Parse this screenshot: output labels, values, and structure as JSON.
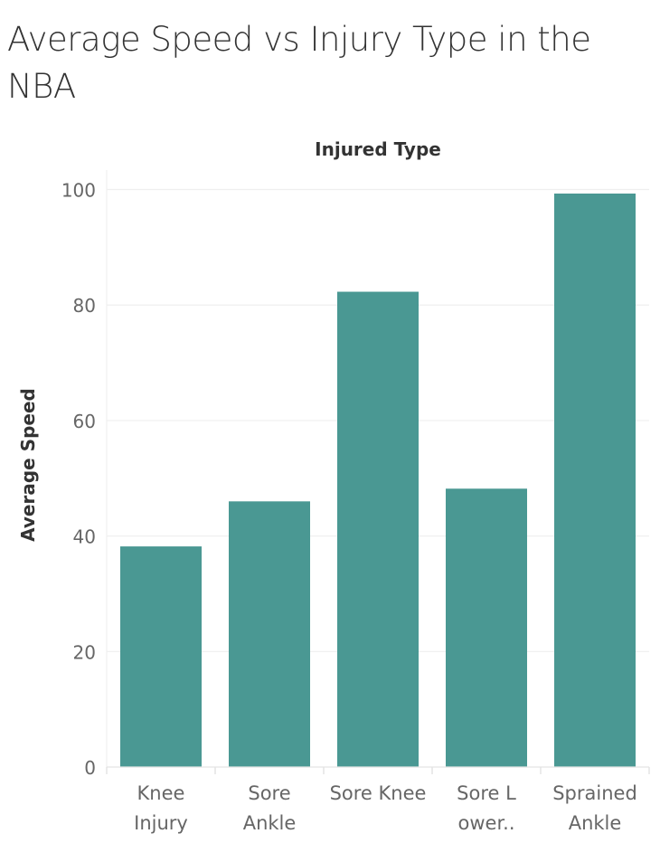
{
  "title": "Average Speed vs Injury Type in the NBA",
  "chart_data": {
    "type": "bar",
    "title": "Average Speed vs Injury Type in the NBA",
    "column_header": "Injured Type",
    "xlabel": "",
    "ylabel": "Average Speed",
    "categories": [
      "Knee Injury",
      "Sore Ankle",
      "Sore Knee",
      "Sore Lower..",
      "Sprained Ankle"
    ],
    "category_label_lines": [
      [
        "Knee",
        "Injury"
      ],
      [
        "Sore",
        "Ankle"
      ],
      [
        "Sore Knee"
      ],
      [
        "Sore L",
        "ower.."
      ],
      [
        "Sprained",
        "Ankle"
      ]
    ],
    "values": [
      38.2,
      46.0,
      82.3,
      48.2,
      99.3
    ],
    "ylim": [
      0,
      103
    ],
    "yticks": [
      "0",
      "20",
      "40",
      "60",
      "80",
      "100"
    ],
    "grid": true,
    "bar_color": "#4a9893",
    "grid_color": "#efefef"
  }
}
